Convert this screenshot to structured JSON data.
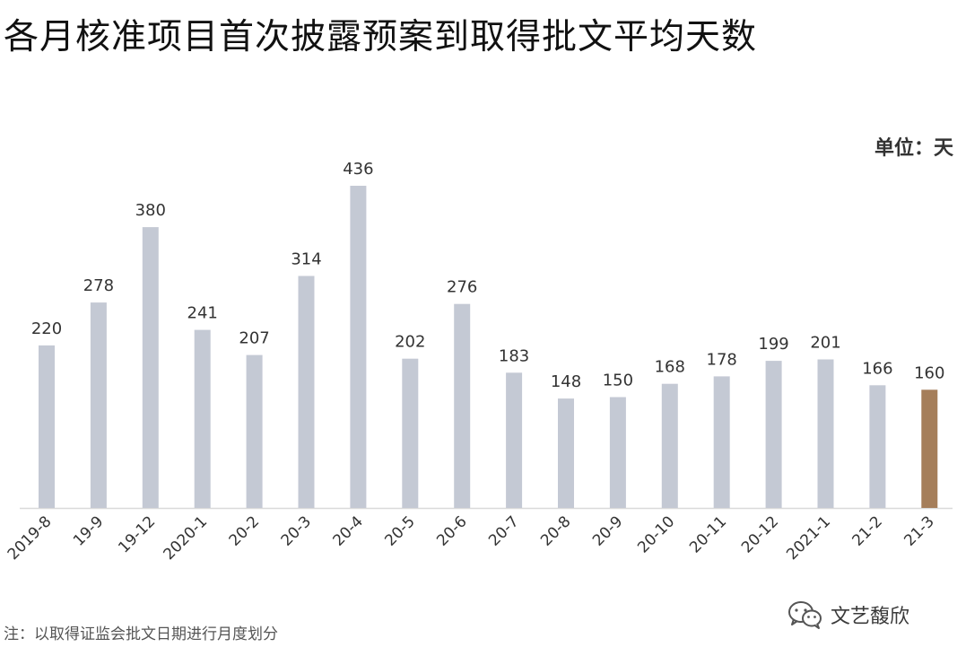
{
  "title": "各月核准项目首次披露预案到取得批文平均天数",
  "unit_label": "单位：天",
  "footnote": "注：以取得证监会批文日期进行月度划分",
  "watermark": {
    "text": "文艺馥欣",
    "icon": "wechat-icon"
  },
  "colors": {
    "bar_default": "#c4c9d4",
    "bar_highlight": "#a57e5a",
    "axis": "#d9d9d9",
    "label": "#333333"
  },
  "chart_data": {
    "type": "bar",
    "title": "各月核准项目首次披露预案到取得批文平均天数",
    "xlabel": "",
    "ylabel": "",
    "unit": "单位：天",
    "categories": [
      "2019-8",
      "19-9",
      "19-12",
      "2020-1",
      "20-2",
      "20-3",
      "20-4",
      "20-5",
      "20-6",
      "20-7",
      "20-8",
      "20-9",
      "20-10",
      "20-11",
      "20-12",
      "2021-1",
      "21-2",
      "21-3"
    ],
    "values": [
      220,
      278,
      380,
      241,
      207,
      314,
      436,
      202,
      276,
      183,
      148,
      150,
      168,
      178,
      199,
      201,
      166,
      160
    ],
    "highlight": "21-3",
    "ylim": [
      0,
      436
    ],
    "grid": false,
    "legend": "none"
  }
}
